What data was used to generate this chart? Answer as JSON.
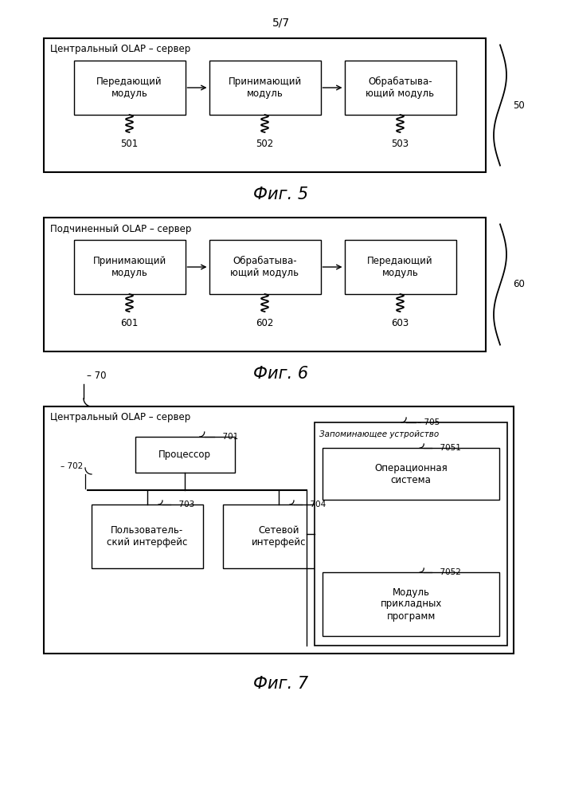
{
  "bg_color": "#ffffff",
  "page_label": "5/7",
  "fig5": {
    "title": "Центральный OLAP – сервер",
    "ref_label": "50",
    "modules": [
      {
        "label": "Передающий\nмодуль",
        "id": "501"
      },
      {
        "label": "Принимающий\nмодуль",
        "id": "502"
      },
      {
        "label": "Обрабатыва-\nющий модуль",
        "id": "503"
      }
    ],
    "caption": "Фиг. 5"
  },
  "fig6": {
    "title": "Подчиненный OLAP – сервер",
    "ref_label": "60",
    "modules": [
      {
        "label": "Принимающий\nмодуль",
        "id": "601"
      },
      {
        "label": "Обрабатыва-\nющий модуль",
        "id": "602"
      },
      {
        "label": "Передающий\nмодуль",
        "id": "603"
      }
    ],
    "caption": "Фиг. 6"
  },
  "fig7": {
    "title": "Центральный OLAP – сервер",
    "ref_label": "70",
    "caption": "Фиг. 7",
    "processor_label": "Процессор",
    "processor_id": "701",
    "bus_id": "702",
    "left_modules": [
      {
        "label": "Пользователь-\nский интерфейс",
        "id": "703"
      },
      {
        "label": "Сетевой\nинтерфейс",
        "id": "704"
      }
    ],
    "memory_box_label": "Запоминающее устройство",
    "memory_id": "705",
    "right_modules": [
      {
        "label": "Операционная\nсистема",
        "id": "7051"
      },
      {
        "label": "Модуль\nприкладных\nпрограмм",
        "id": "7052"
      }
    ]
  }
}
